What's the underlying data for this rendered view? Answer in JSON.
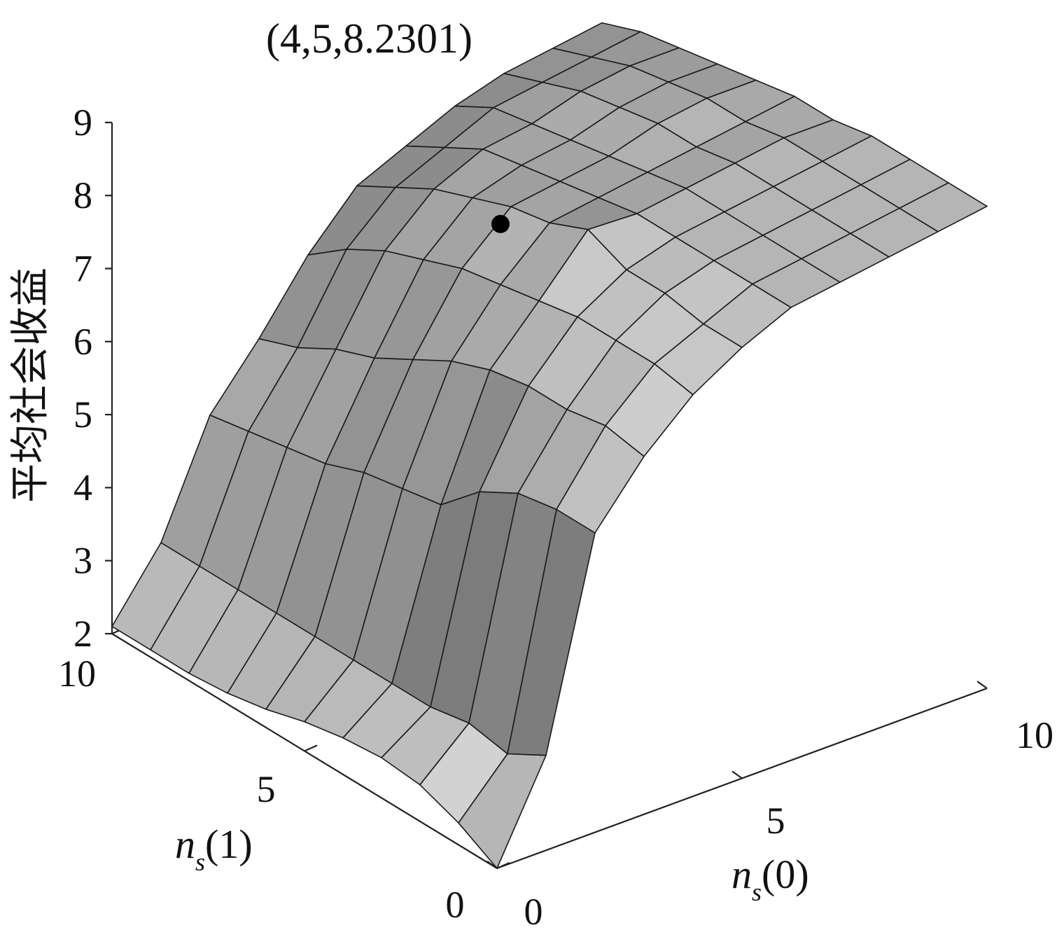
{
  "chart_data": {
    "type": "surface",
    "annotation": "(4,5,8.2301)",
    "highlight_point": {
      "x": 4,
      "y": 5,
      "z": 8.2301
    },
    "zlabel": "平均社会收益",
    "xlabel": {
      "main": "n",
      "sub": "s",
      "arg": "(0)"
    },
    "ylabel": {
      "main": "n",
      "sub": "s",
      "arg": "(1)"
    },
    "xlim": [
      0,
      10
    ],
    "ylim": [
      0,
      10
    ],
    "zlim": [
      2,
      9
    ],
    "xticks": [
      "0",
      "5",
      "10"
    ],
    "yticks": [
      "0",
      "5",
      "10"
    ],
    "zticks": [
      "2",
      "3",
      "4",
      "5",
      "6",
      "7",
      "8",
      "9"
    ],
    "grid": false,
    "colormap": "gray",
    "x": [
      0,
      1,
      2,
      3,
      4,
      5,
      6,
      7,
      8,
      9,
      10
    ],
    "y": [
      0,
      1,
      2,
      3,
      4,
      5,
      6,
      7,
      8,
      9,
      10
    ],
    "z": [
      [
        2.0,
        2.3,
        2.5,
        2.55,
        2.5,
        2.4,
        2.25,
        2.15,
        2.1,
        2.1,
        2.1
      ],
      [
        3.3,
        3.0,
        3.1,
        3.0,
        3.0,
        3.0,
        3.0,
        3.0,
        3.0,
        3.0,
        3.0
      ],
      [
        6.1,
        6.1,
        6.0,
        5.7,
        5.2,
        5.1,
        5.0,
        4.8,
        4.7,
        4.6,
        4.5
      ],
      [
        6.9,
        7.0,
        6.9,
        6.9,
        6.8,
        6.6,
        6.3,
        6.0,
        5.8,
        5.5,
        5.3
      ],
      [
        7.5,
        7.6,
        7.6,
        7.6,
        7.5,
        7.4,
        7.3,
        7.1,
        6.9,
        6.6,
        6.2
      ],
      [
        7.9,
        7.9,
        8.0,
        8.0,
        8.2301,
        8.0,
        7.9,
        7.7,
        7.5,
        7.2,
        6.9
      ],
      [
        8.2,
        8.2,
        8.2,
        8.2,
        8.2,
        8.1,
        8.0,
        7.9,
        7.8,
        7.5,
        7.2
      ],
      [
        8.3,
        8.3,
        8.3,
        8.3,
        8.3,
        8.2,
        8.1,
        8.0,
        7.9,
        7.8,
        7.5
      ],
      [
        8.4,
        8.4,
        8.4,
        8.4,
        8.4,
        8.3,
        8.3,
        8.2,
        8.1,
        7.9,
        7.7
      ],
      [
        8.5,
        8.5,
        8.5,
        8.5,
        8.5,
        8.4,
        8.4,
        8.3,
        8.2,
        8.0,
        7.8
      ],
      [
        8.6,
        8.6,
        8.6,
        8.6,
        8.5,
        8.5,
        8.4,
        8.3,
        8.2,
        8.1,
        7.9
      ]
    ]
  }
}
